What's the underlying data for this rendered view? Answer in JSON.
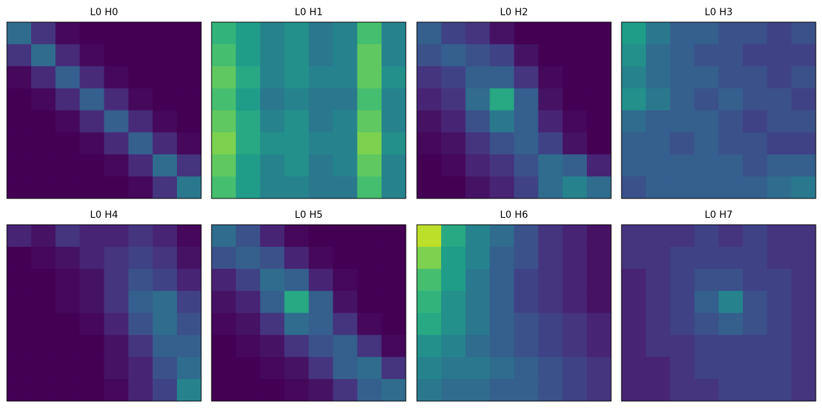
{
  "chart_data": [
    {
      "type": "heatmap",
      "title": "L0 H0",
      "colormap": "viridis",
      "zlim": [
        0,
        1
      ],
      "z": [
        [
          0.35,
          0.15,
          0.02,
          0,
          0,
          0,
          0,
          0
        ],
        [
          0.15,
          0.35,
          0.12,
          0.02,
          0,
          0,
          0,
          0
        ],
        [
          0.02,
          0.12,
          0.3,
          0.12,
          0.02,
          0,
          0,
          0
        ],
        [
          0,
          0.02,
          0.12,
          0.3,
          0.12,
          0.02,
          0,
          0
        ],
        [
          0,
          0,
          0.02,
          0.12,
          0.3,
          0.12,
          0.02,
          0
        ],
        [
          0,
          0,
          0,
          0.02,
          0.12,
          0.3,
          0.12,
          0.02
        ],
        [
          0,
          0,
          0,
          0,
          0.02,
          0.12,
          0.35,
          0.15
        ],
        [
          0,
          0,
          0,
          0,
          0,
          0.02,
          0.15,
          0.4
        ]
      ]
    },
    {
      "type": "heatmap",
      "title": "L0 H1",
      "colormap": "viridis",
      "zlim": [
        0,
        1
      ],
      "z": [
        [
          0.65,
          0.55,
          0.45,
          0.5,
          0.4,
          0.45,
          0.7,
          0.45
        ],
        [
          0.7,
          0.55,
          0.45,
          0.5,
          0.4,
          0.45,
          0.75,
          0.45
        ],
        [
          0.75,
          0.6,
          0.45,
          0.5,
          0.45,
          0.45,
          0.75,
          0.5
        ],
        [
          0.7,
          0.55,
          0.4,
          0.45,
          0.4,
          0.4,
          0.7,
          0.45
        ],
        [
          0.75,
          0.6,
          0.45,
          0.5,
          0.4,
          0.45,
          0.75,
          0.45
        ],
        [
          0.8,
          0.6,
          0.5,
          0.5,
          0.45,
          0.45,
          0.8,
          0.5
        ],
        [
          0.75,
          0.55,
          0.45,
          0.5,
          0.4,
          0.45,
          0.75,
          0.45
        ],
        [
          0.7,
          0.55,
          0.45,
          0.45,
          0.4,
          0.4,
          0.7,
          0.45
        ]
      ]
    },
    {
      "type": "heatmap",
      "title": "L0 H2",
      "colormap": "viridis",
      "zlim": [
        0,
        1
      ],
      "z": [
        [
          0.3,
          0.2,
          0.15,
          0.05,
          0,
          0,
          0,
          0
        ],
        [
          0.25,
          0.3,
          0.25,
          0.2,
          0.05,
          0,
          0,
          0
        ],
        [
          0.15,
          0.2,
          0.3,
          0.3,
          0.15,
          0.02,
          0,
          0
        ],
        [
          0.1,
          0.15,
          0.35,
          0.6,
          0.3,
          0.05,
          0,
          0
        ],
        [
          0.05,
          0.1,
          0.25,
          0.4,
          0.3,
          0.1,
          0.02,
          0
        ],
        [
          0.02,
          0.05,
          0.15,
          0.25,
          0.3,
          0.2,
          0.05,
          0
        ],
        [
          0,
          0.02,
          0.1,
          0.15,
          0.25,
          0.35,
          0.3,
          0.1
        ],
        [
          0,
          0,
          0.05,
          0.1,
          0.2,
          0.35,
          0.45,
          0.35
        ]
      ]
    },
    {
      "type": "heatmap",
      "title": "L0 H3",
      "colormap": "viridis",
      "zlim": [
        0,
        1
      ],
      "z": [
        [
          0.55,
          0.4,
          0.3,
          0.3,
          0.25,
          0.25,
          0.2,
          0.25
        ],
        [
          0.5,
          0.35,
          0.3,
          0.25,
          0.25,
          0.2,
          0.2,
          0.2
        ],
        [
          0.45,
          0.35,
          0.3,
          0.3,
          0.25,
          0.25,
          0.2,
          0.25
        ],
        [
          0.5,
          0.4,
          0.3,
          0.25,
          0.3,
          0.25,
          0.25,
          0.2
        ],
        [
          0.35,
          0.3,
          0.3,
          0.3,
          0.25,
          0.2,
          0.25,
          0.25
        ],
        [
          0.3,
          0.3,
          0.25,
          0.3,
          0.25,
          0.25,
          0.2,
          0.2
        ],
        [
          0.3,
          0.3,
          0.3,
          0.3,
          0.3,
          0.25,
          0.3,
          0.3
        ],
        [
          0.25,
          0.3,
          0.3,
          0.3,
          0.3,
          0.3,
          0.35,
          0.4
        ]
      ]
    },
    {
      "type": "heatmap",
      "title": "L0 H4",
      "colormap": "viridis",
      "zlim": [
        0,
        1
      ],
      "z": [
        [
          0.1,
          0.05,
          0.15,
          0.1,
          0.1,
          0.15,
          0.1,
          0.02
        ],
        [
          0,
          0.02,
          0.05,
          0.1,
          0.15,
          0.2,
          0.15,
          0.05
        ],
        [
          0,
          0,
          0.02,
          0.05,
          0.15,
          0.25,
          0.2,
          0.1
        ],
        [
          0,
          0,
          0.02,
          0.05,
          0.15,
          0.3,
          0.35,
          0.2
        ],
        [
          0,
          0,
          0,
          0.02,
          0.1,
          0.25,
          0.35,
          0.25
        ],
        [
          0,
          0,
          0,
          0,
          0.05,
          0.15,
          0.3,
          0.3
        ],
        [
          0,
          0,
          0,
          0,
          0.05,
          0.1,
          0.25,
          0.35
        ],
        [
          0,
          0,
          0,
          0,
          0.02,
          0.1,
          0.2,
          0.45
        ]
      ]
    },
    {
      "type": "heatmap",
      "title": "L0 H5",
      "colormap": "viridis",
      "zlim": [
        0,
        1
      ],
      "z": [
        [
          0.35,
          0.25,
          0.1,
          0.02,
          0,
          0,
          0,
          0
        ],
        [
          0.25,
          0.3,
          0.25,
          0.1,
          0.02,
          0,
          0,
          0
        ],
        [
          0.1,
          0.2,
          0.35,
          0.3,
          0.1,
          0.02,
          0,
          0
        ],
        [
          0.05,
          0.1,
          0.3,
          0.6,
          0.3,
          0.05,
          0,
          0
        ],
        [
          0.02,
          0.05,
          0.15,
          0.35,
          0.3,
          0.15,
          0.02,
          0
        ],
        [
          0,
          0.02,
          0.05,
          0.15,
          0.25,
          0.3,
          0.15,
          0.02
        ],
        [
          0,
          0,
          0.02,
          0.05,
          0.15,
          0.3,
          0.35,
          0.15
        ],
        [
          0,
          0,
          0,
          0.02,
          0.05,
          0.15,
          0.3,
          0.35
        ]
      ]
    },
    {
      "type": "heatmap",
      "title": "L0 H6",
      "colormap": "viridis",
      "zlim": [
        0,
        1
      ],
      "z": [
        [
          0.9,
          0.6,
          0.45,
          0.35,
          0.25,
          0.15,
          0.1,
          0.05
        ],
        [
          0.8,
          0.55,
          0.45,
          0.3,
          0.25,
          0.15,
          0.1,
          0.05
        ],
        [
          0.7,
          0.55,
          0.4,
          0.3,
          0.2,
          0.15,
          0.1,
          0.05
        ],
        [
          0.65,
          0.5,
          0.4,
          0.3,
          0.2,
          0.15,
          0.1,
          0.05
        ],
        [
          0.6,
          0.5,
          0.4,
          0.3,
          0.25,
          0.2,
          0.15,
          0.1
        ],
        [
          0.5,
          0.45,
          0.35,
          0.3,
          0.25,
          0.2,
          0.15,
          0.1
        ],
        [
          0.45,
          0.4,
          0.4,
          0.35,
          0.3,
          0.25,
          0.2,
          0.15
        ],
        [
          0.4,
          0.35,
          0.35,
          0.3,
          0.3,
          0.25,
          0.2,
          0.15
        ]
      ]
    },
    {
      "type": "heatmap",
      "title": "L0 H7",
      "colormap": "viridis",
      "zlim": [
        0,
        1
      ],
      "z": [
        [
          0.15,
          0.15,
          0.15,
          0.2,
          0.15,
          0.2,
          0.15,
          0.15
        ],
        [
          0.15,
          0.15,
          0.2,
          0.2,
          0.2,
          0.2,
          0.15,
          0.15
        ],
        [
          0.1,
          0.15,
          0.2,
          0.25,
          0.25,
          0.2,
          0.2,
          0.15
        ],
        [
          0.1,
          0.15,
          0.2,
          0.3,
          0.45,
          0.25,
          0.2,
          0.15
        ],
        [
          0.1,
          0.15,
          0.2,
          0.25,
          0.3,
          0.25,
          0.2,
          0.15
        ],
        [
          0.1,
          0.15,
          0.15,
          0.2,
          0.2,
          0.2,
          0.2,
          0.15
        ],
        [
          0.1,
          0.1,
          0.15,
          0.2,
          0.2,
          0.2,
          0.2,
          0.15
        ],
        [
          0.1,
          0.1,
          0.15,
          0.15,
          0.2,
          0.2,
          0.2,
          0.15
        ]
      ]
    }
  ]
}
